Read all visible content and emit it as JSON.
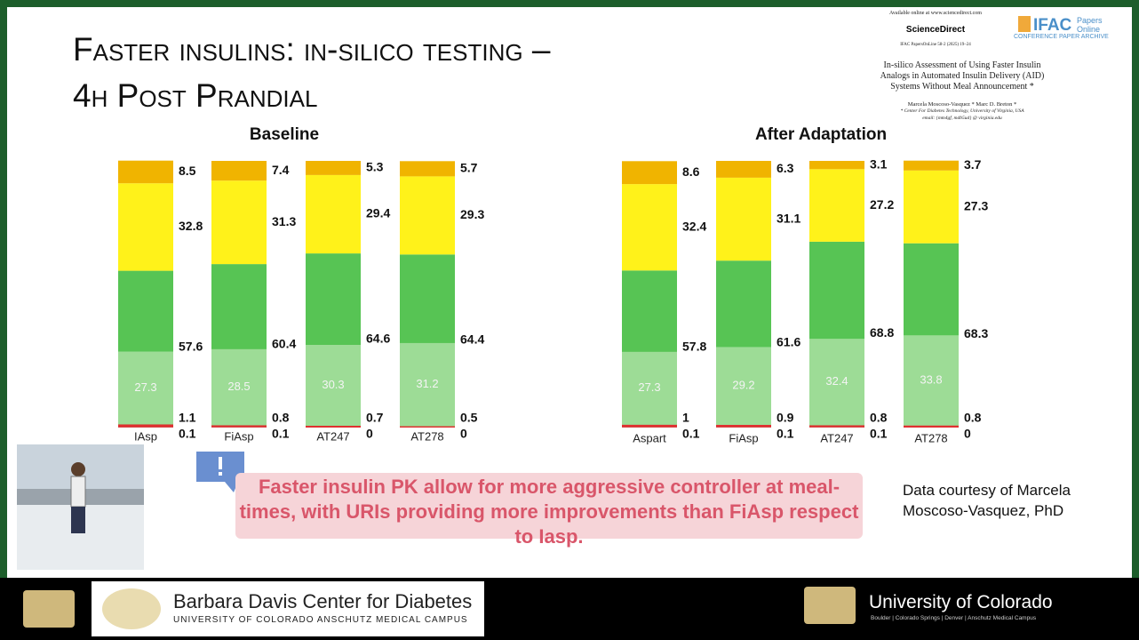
{
  "slide": {
    "title": "Faster insulins: in-silico testing – 4h Post Prandial",
    "paper": {
      "available": "Available online at www.sciencedirect.com",
      "publisher": "ScienceDirect",
      "journal": "IFAC PapersOnLine 58-2 (2025) 19–24",
      "ifac": "IFAC",
      "ifac_sub": "Papers Online",
      "archive": "CONFERENCE PAPER ARCHIVE",
      "paper_title": "In-silico Assessment of Using Faster Insulin Analogs in Automated Insulin Delivery (AID) Systems Without Meal Announcement *",
      "authors": "Marcela Moscoso-Vasquez * Marc D. Breton *",
      "affiliation": "* Center For Diabetes Technology, University of Virginia, USA",
      "email": "email: {mm4gf, mdb5ud} @ virginia.edu"
    },
    "callout": "Faster insulin PK allow for more aggressive controller at meal-times, with URIs providing more improvements than FiAsp respect to Iasp.",
    "courtesy": "Data courtesy of Marcela Moscoso-Vasquez, PhD",
    "footer_left_title": "Barbara Davis Center for Diabetes",
    "footer_left_sub": "UNIVERSITY OF COLORADO ANSCHUTZ MEDICAL CAMPUS",
    "footer_right_title": "University of Colorado",
    "footer_right_sub": "Boulder | Colorado Springs | Denver | Anschutz Medical Campus"
  },
  "chart_data": [
    {
      "type": "bar",
      "stacked": true,
      "title": "Baseline",
      "categories": [
        "IAsp",
        "FiAsp",
        "AT247",
        "AT278"
      ],
      "series": [
        {
          "color": "#8b1a1a",
          "values": [
            0.1,
            0.1,
            0,
            0
          ]
        },
        {
          "color": "#e03030",
          "values": [
            1.1,
            0.8,
            0.7,
            0.5
          ]
        },
        {
          "color": "#57c454",
          "values": [
            57.6,
            60.4,
            64.6,
            64.4
          ]
        },
        {
          "color": "#fff21a",
          "values": [
            32.8,
            31.3,
            29.4,
            29.3
          ]
        },
        {
          "color": "#f0b400",
          "values": [
            8.5,
            7.4,
            5.3,
            5.7
          ]
        },
        {
          "color": "#9ddc96",
          "overlay": true,
          "values": [
            27.3,
            28.5,
            30.3,
            31.2
          ]
        }
      ]
    },
    {
      "type": "bar",
      "stacked": true,
      "title": "After Adaptation",
      "categories": [
        "Aspart",
        "FiAsp",
        "AT247",
        "AT278"
      ],
      "series": [
        {
          "color": "#8b1a1a",
          "values": [
            0.1,
            0.1,
            0.1,
            0
          ]
        },
        {
          "color": "#e03030",
          "values": [
            1,
            0.9,
            0.8,
            0.8
          ]
        },
        {
          "color": "#57c454",
          "values": [
            57.8,
            61.6,
            68.8,
            68.3
          ]
        },
        {
          "color": "#fff21a",
          "values": [
            32.4,
            31.1,
            27.2,
            27.3
          ]
        },
        {
          "color": "#f0b400",
          "values": [
            8.6,
            6.3,
            3.1,
            3.7
          ]
        },
        {
          "color": "#9ddc96",
          "overlay": true,
          "values": [
            27.3,
            29.2,
            32.4,
            33.8
          ]
        }
      ]
    }
  ]
}
